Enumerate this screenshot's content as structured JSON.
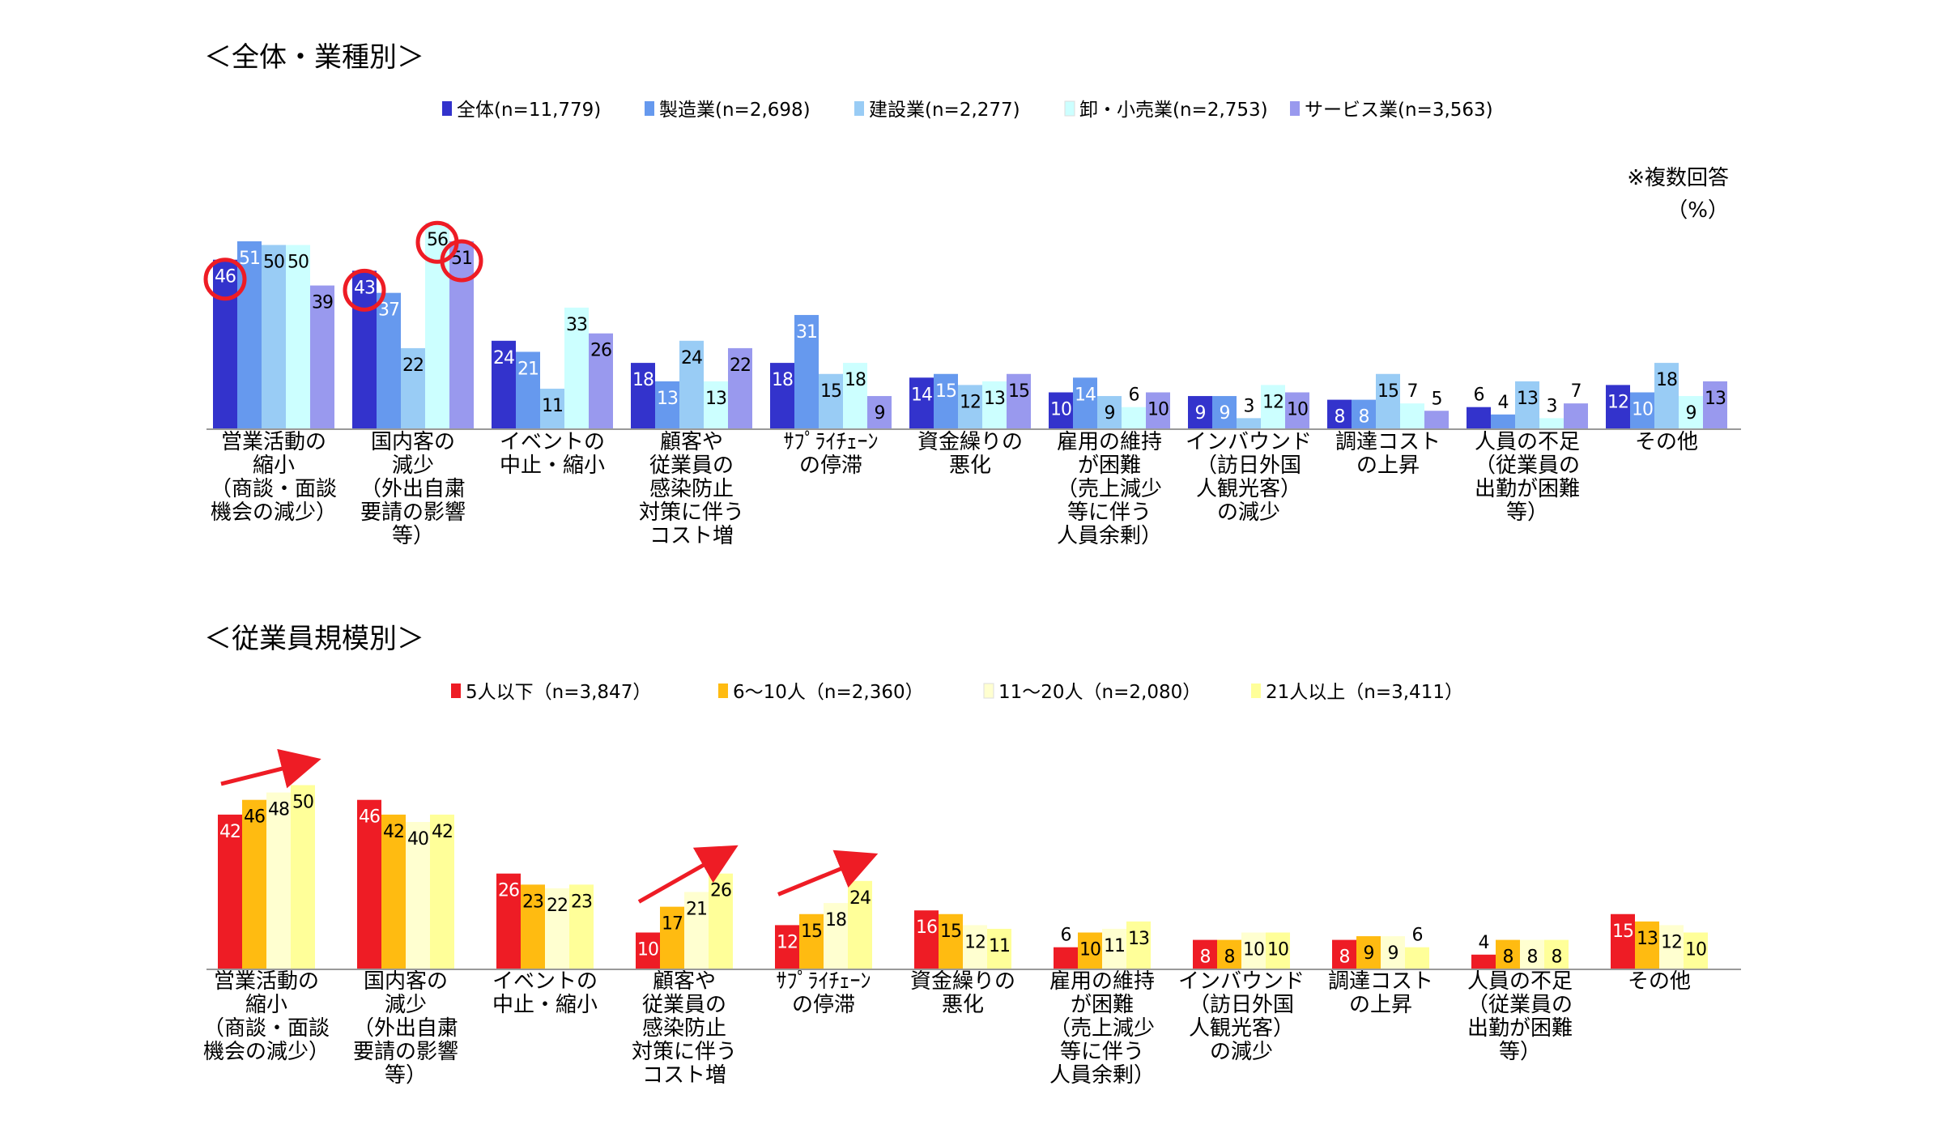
{
  "chart_data": [
    {
      "type": "bar",
      "title": "＜全体・業種別＞",
      "note": "※複数回答",
      "unit": "（%）",
      "categories": [
        [
          "営業活動の",
          "縮小",
          "（商談・面談",
          "機会の減少）"
        ],
        [
          "国内客の",
          "減少",
          "（外出自粛",
          "要請の影響",
          "等）"
        ],
        [
          "イベントの",
          "中止・縮小"
        ],
        [
          "顧客や",
          "従業員の",
          "感染防止",
          "対策に伴う",
          "コスト増"
        ],
        [
          "ｻﾌﾟﾗｲﾁｪｰﾝ",
          "の停滞"
        ],
        [
          "資金繰りの",
          "悪化"
        ],
        [
          "雇用の維持",
          "が困難",
          "（売上減少",
          "等に伴う",
          "人員余剰）"
        ],
        [
          "インバウンド",
          "（訪日外国",
          "人観光客）",
          "の減少"
        ],
        [
          "調達コスト",
          "の上昇"
        ],
        [
          "人員の不足",
          "（従業員の",
          "出勤が困難",
          "等）"
        ],
        [
          "その他"
        ]
      ],
      "series": [
        {
          "name": "全体(n=11,779)",
          "color": "#3333cc",
          "label_color": "#ffffff",
          "values": [
            46,
            43,
            24,
            18,
            18,
            14,
            10,
            9,
            8,
            6,
            12
          ]
        },
        {
          "name": "製造業(n=2,698)",
          "color": "#6699ee",
          "label_color": "#ffffff",
          "values": [
            51,
            37,
            21,
            13,
            31,
            15,
            14,
            9,
            8,
            4,
            10
          ]
        },
        {
          "name": "建設業(n=2,277)",
          "color": "#99ccf5",
          "label_color": "#000000",
          "values": [
            50,
            22,
            11,
            24,
            15,
            12,
            9,
            3,
            15,
            13,
            18
          ]
        },
        {
          "name": "卸・小売業(n=2,753)",
          "color": "#ccffff",
          "label_color": "#000000",
          "values": [
            50,
            56,
            33,
            13,
            18,
            13,
            6,
            12,
            7,
            3,
            9
          ]
        },
        {
          "name": "サービス業(n=3,563)",
          "color": "#9999ee",
          "label_color": "#000000",
          "values": [
            39,
            51,
            26,
            22,
            9,
            15,
            10,
            10,
            5,
            7,
            13
          ]
        }
      ],
      "highlighted": [
        {
          "category": 0,
          "series": 0
        },
        {
          "category": 1,
          "series": 0
        },
        {
          "category": 1,
          "series": 3
        },
        {
          "category": 1,
          "series": 4
        }
      ],
      "ylim": [
        0,
        60
      ]
    },
    {
      "type": "bar",
      "title": "＜従業員規模別＞",
      "categories": [
        [
          "営業活動の",
          "縮小",
          "（商談・面談",
          "機会の減少）"
        ],
        [
          "国内客の",
          "減少",
          "（外出自粛",
          "要請の影響",
          "等）"
        ],
        [
          "イベントの",
          "中止・縮小"
        ],
        [
          "顧客や",
          "従業員の",
          "感染防止",
          "対策に伴う",
          "コスト増"
        ],
        [
          "ｻﾌﾟﾗｲﾁｪｰﾝ",
          "の停滞"
        ],
        [
          "資金繰りの",
          "悪化"
        ],
        [
          "雇用の維持",
          "が困難",
          "（売上減少",
          "等に伴う",
          "人員余剰）"
        ],
        [
          "インバウンド",
          "（訪日外国",
          "人観光客）",
          "の減少"
        ],
        [
          "調達コスト",
          "の上昇"
        ],
        [
          "人員の不足",
          "（従業員の",
          "出勤が困難",
          "等）"
        ],
        [
          "その他"
        ]
      ],
      "series": [
        {
          "name": "5人以下（n=3,847）",
          "color": "#ee1c25",
          "label_color": "#ffffff",
          "values": [
            42,
            46,
            26,
            10,
            12,
            16,
            6,
            8,
            8,
            4,
            15
          ]
        },
        {
          "name": "6～10人（n=2,360）",
          "color": "#ffbb11",
          "label_color": "#000000",
          "values": [
            46,
            42,
            23,
            17,
            15,
            15,
            10,
            8,
            9,
            8,
            13
          ]
        },
        {
          "name": "11～20人（n=2,080）",
          "color": "#ffffd0",
          "label_color": "#000000",
          "values": [
            48,
            40,
            22,
            21,
            18,
            12,
            11,
            10,
            9,
            8,
            12
          ]
        },
        {
          "name": "21人以上（n=3,411）",
          "color": "#ffff99",
          "label_color": "#000000",
          "values": [
            50,
            42,
            23,
            26,
            24,
            11,
            13,
            10,
            6,
            8,
            10
          ]
        }
      ],
      "trend_arrows": [
        0,
        3,
        4
      ],
      "ylim": [
        0,
        60
      ]
    }
  ]
}
